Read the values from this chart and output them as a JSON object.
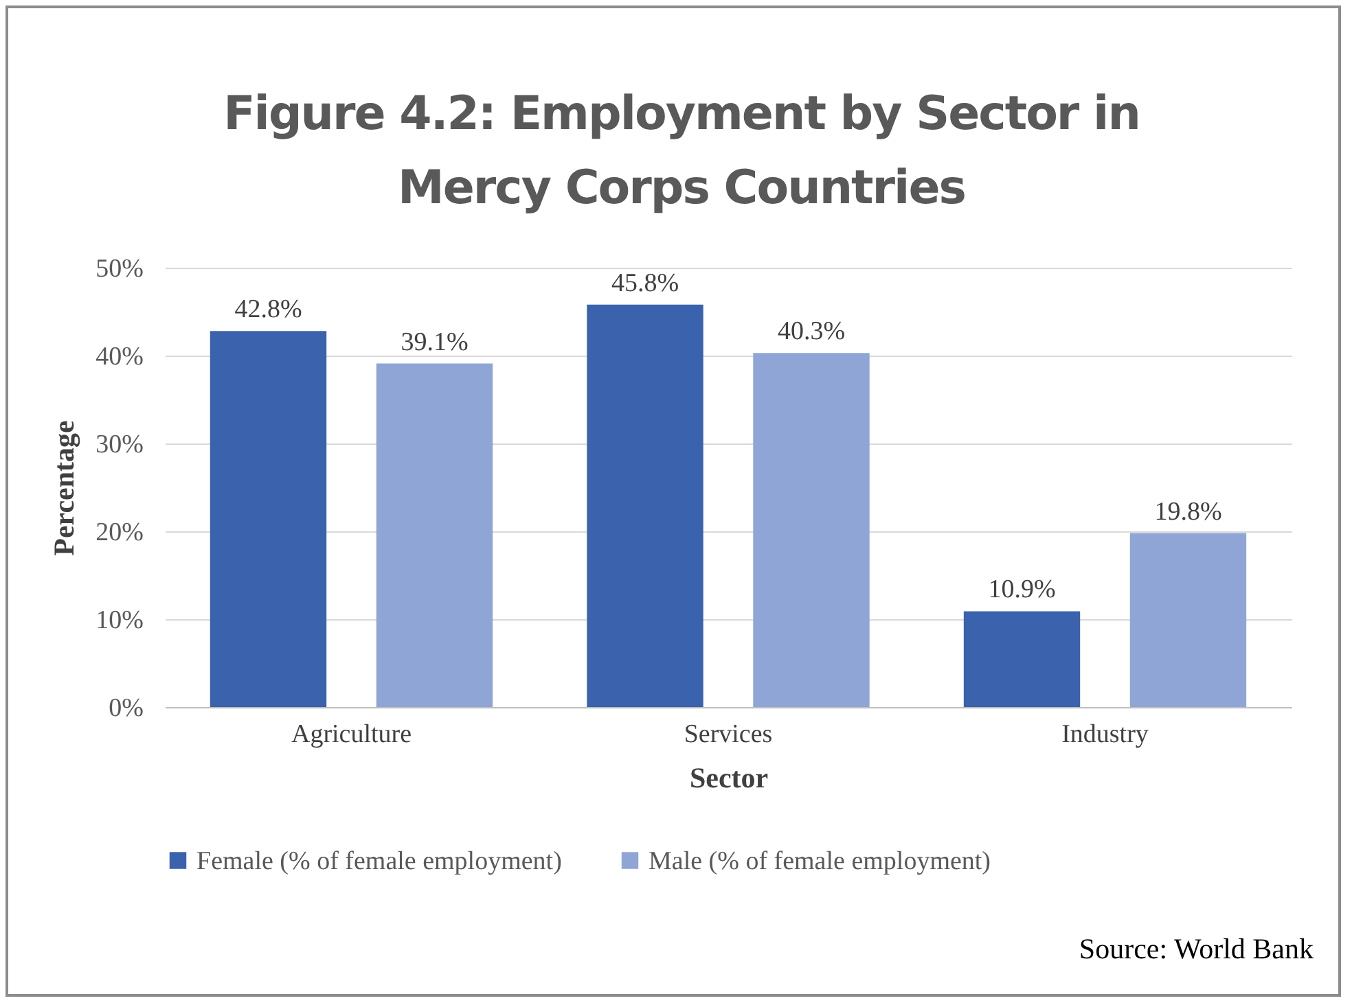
{
  "chart_data": {
    "type": "bar",
    "title": "Figure 4.2: Employment by Sector in Mercy Corps Countries",
    "xlabel": "Sector",
    "ylabel": "Percentage",
    "categories": [
      "Agriculture",
      "Services",
      "Industry"
    ],
    "series": [
      {
        "name": "Female (% of female employment)",
        "color": "#3a62ad",
        "values": [
          42.8,
          45.8,
          10.9
        ],
        "value_labels": [
          "42.8%",
          "45.8%",
          "10.9%"
        ]
      },
      {
        "name": "Male (% of female employment)",
        "color": "#8fa5d6",
        "values": [
          39.1,
          40.3,
          19.8
        ],
        "value_labels": [
          "39.1%",
          "40.3%",
          "19.8%"
        ]
      }
    ],
    "ylim": [
      0,
      50
    ],
    "yticks": [
      {
        "value": 0,
        "label": "0%"
      },
      {
        "value": 10,
        "label": "10%"
      },
      {
        "value": 20,
        "label": "20%"
      },
      {
        "value": 30,
        "label": "30%"
      },
      {
        "value": 40,
        "label": "40%"
      },
      {
        "value": 50,
        "label": "50%"
      }
    ],
    "grid": "y",
    "legend": "bottom",
    "annotations": [
      "Source: World Bank"
    ]
  }
}
